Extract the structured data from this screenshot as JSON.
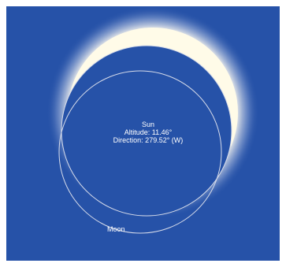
{
  "sun": {
    "name": "Sun",
    "altitude_text": "Altitude: 11.46°",
    "direction_text": "Direction: 279.52° (W)"
  },
  "moon": {
    "name": "Moon"
  },
  "colors": {
    "sky": "#2652a8",
    "corona": "#fffbe8",
    "outline": "#d7dcea",
    "text": "#ffffff"
  }
}
